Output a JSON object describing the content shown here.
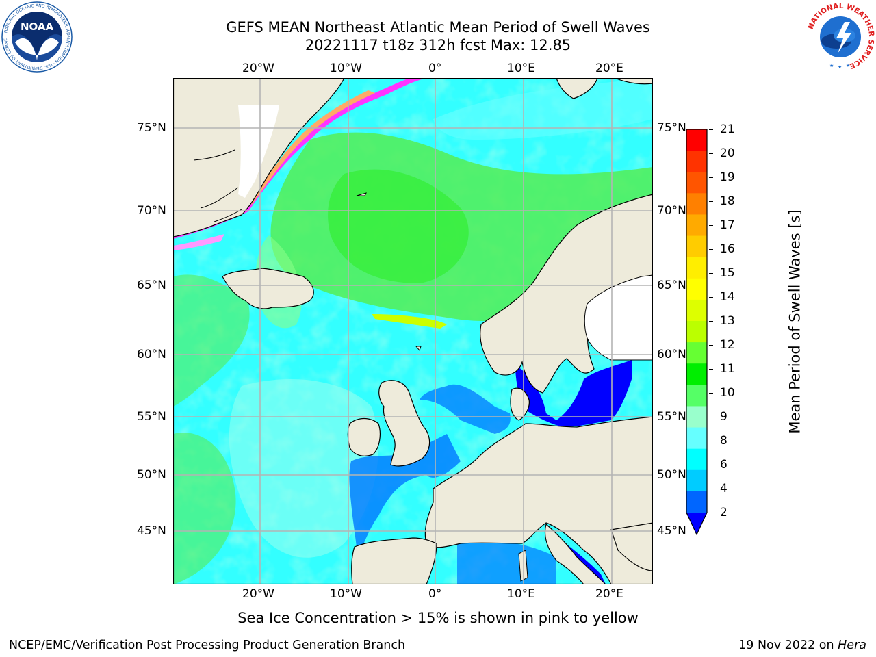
{
  "title": {
    "line1": "GEFS MEAN Northeast Atlantic Mean Period of Swell Waves",
    "line2": "20221117 t18z 312h fcst   Max: 12.85"
  },
  "logos": {
    "left": {
      "name": "noaa-logo",
      "text": "NOAA",
      "ring_text": "NATIONAL OCEANIC AND ATMOSPHERIC ADMINISTRATION · U.S. DEPARTMENT OF COMMERCE",
      "color": "#1a5aa6"
    },
    "right": {
      "name": "nws-logo",
      "ring_text": "NATIONAL WEATHER SERVICE",
      "color": "#e02020"
    }
  },
  "map": {
    "top_lon_labels": [
      "20°W",
      "10°W",
      "0°",
      "10°E",
      "20°E"
    ],
    "bottom_lon_labels": [
      "20°W",
      "10°W",
      "0°",
      "10°E",
      "20°E"
    ],
    "left_lat_labels": [
      "75°N",
      "70°N",
      "65°N",
      "60°N",
      "55°N",
      "50°N",
      "45°N"
    ],
    "right_lat_labels": [
      "75°N",
      "70°N",
      "65°N",
      "60°N",
      "55°N",
      "50°N",
      "45°N"
    ],
    "land_color": "#eeebdb",
    "ocean_base_color": "#33ffff",
    "ice_colors": [
      "#ff33ff",
      "#ff99ff",
      "#ffcc66",
      "#ffff66"
    ]
  },
  "colorbar": {
    "label": "Mean Period of Swell Waves [s]",
    "ticks": [
      "21",
      "20",
      "19",
      "18",
      "17",
      "16",
      "15",
      "14",
      "13",
      "12",
      "11",
      "10",
      "9",
      "8",
      "6",
      "4",
      "2"
    ],
    "colors": [
      "#ff0000",
      "#ff3300",
      "#ff5500",
      "#ff8000",
      "#ffaa00",
      "#ffcc00",
      "#ffee00",
      "#ffff00",
      "#ddff00",
      "#bbff00",
      "#66ff33",
      "#00ee00",
      "#55ff66",
      "#99ffcc",
      "#66ffff",
      "#00ffff",
      "#00ccff",
      "#0066ff",
      "#0000ff"
    ]
  },
  "captions": {
    "ice_note": "Sea Ice Concentration > 15% is shown in pink to yellow",
    "branch": "NCEP/EMC/Verification Post Processing Product Generation Branch",
    "date_prefix": "19 Nov 2022 on ",
    "date_machine": "Hera"
  }
}
